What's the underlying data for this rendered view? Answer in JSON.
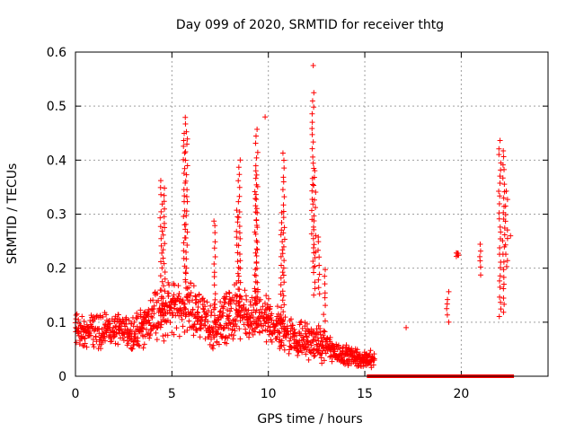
{
  "chart_data": {
    "type": "scatter",
    "title": "Day 099 of 2020, SRMTID for receiver thtg",
    "xlabel": "GPS time / hours",
    "ylabel": "SRMTID / TECUs",
    "xlim": [
      0,
      24.5
    ],
    "ylim": [
      0,
      0.6
    ],
    "xticks": [
      "0",
      "5",
      "10",
      "15",
      "20"
    ],
    "xtick_values": [
      0,
      5,
      10,
      15,
      20
    ],
    "yticks": [
      "0",
      "0.1",
      "0.2",
      "0.3",
      "0.4",
      "0.5",
      "0.6"
    ],
    "ytick_values": [
      0,
      0.1,
      0.2,
      0.3,
      0.4,
      0.5,
      0.6
    ],
    "grid": true,
    "marker": "+",
    "color": "#ff0000",
    "zero_marker": "square",
    "zero_gap_range": [
      15.2,
      22.7
    ],
    "envelope": {
      "x": [
        0,
        0.5,
        1,
        1.5,
        2,
        2.5,
        3,
        3.5,
        4,
        4.5,
        5,
        5.5,
        6,
        6.5,
        7,
        7.5,
        8,
        8.5,
        9,
        9.5,
        10,
        10.5,
        11,
        11.5,
        12,
        12.5,
        13,
        13.5,
        14,
        14.5,
        15,
        15.5
      ],
      "center": [
        0.085,
        0.08,
        0.085,
        0.09,
        0.085,
        0.08,
        0.085,
        0.09,
        0.11,
        0.12,
        0.13,
        0.12,
        0.13,
        0.11,
        0.09,
        0.1,
        0.11,
        0.12,
        0.1,
        0.11,
        0.1,
        0.09,
        0.08,
        0.07,
        0.065,
        0.06,
        0.055,
        0.045,
        0.04,
        0.035,
        0.03,
        0.035
      ],
      "spread": [
        0.04,
        0.035,
        0.04,
        0.04,
        0.035,
        0.035,
        0.04,
        0.045,
        0.05,
        0.06,
        0.06,
        0.06,
        0.06,
        0.05,
        0.05,
        0.05,
        0.06,
        0.06,
        0.05,
        0.06,
        0.05,
        0.05,
        0.04,
        0.04,
        0.04,
        0.04,
        0.035,
        0.025,
        0.02,
        0.02,
        0.015,
        0.02
      ]
    },
    "spikes": [
      {
        "x": 4.45,
        "low": 0.12,
        "high": 0.36
      },
      {
        "x": 4.6,
        "low": 0.13,
        "high": 0.35
      },
      {
        "x": 5.75,
        "low": 0.15,
        "high": 0.48
      },
      {
        "x": 5.65,
        "low": 0.18,
        "high": 0.45
      },
      {
        "x": 7.2,
        "low": 0.1,
        "high": 0.29
      },
      {
        "x": 8.5,
        "low": 0.12,
        "high": 0.4
      },
      {
        "x": 8.4,
        "low": 0.12,
        "high": 0.31
      },
      {
        "x": 9.4,
        "low": 0.12,
        "high": 0.455
      },
      {
        "x": 9.35,
        "low": 0.12,
        "high": 0.37
      },
      {
        "x": 9.85,
        "low": 0.48,
        "high": 0.48
      },
      {
        "x": 10.8,
        "low": 0.12,
        "high": 0.41
      },
      {
        "x": 10.7,
        "low": 0.1,
        "high": 0.3
      },
      {
        "x": 12.3,
        "low": 0.2,
        "high": 0.525
      },
      {
        "x": 12.3,
        "low": 0.575,
        "high": 0.575
      },
      {
        "x": 12.4,
        "low": 0.15,
        "high": 0.38
      },
      {
        "x": 12.6,
        "low": 0.15,
        "high": 0.26
      },
      {
        "x": 12.9,
        "low": 0.1,
        "high": 0.2
      },
      {
        "x": 17.2,
        "low": 0.09,
        "high": 0.09
      },
      {
        "x": 19.3,
        "low": 0.1,
        "high": 0.155
      },
      {
        "x": 19.8,
        "low": 0.22,
        "high": 0.23
      },
      {
        "x": 21.0,
        "low": 0.19,
        "high": 0.245
      },
      {
        "x": 22.0,
        "low": 0.11,
        "high": 0.435
      },
      {
        "x": 22.2,
        "low": 0.12,
        "high": 0.42
      },
      {
        "x": 22.35,
        "low": 0.2,
        "high": 0.34
      },
      {
        "x": 22.6,
        "low": 0.26,
        "high": 0.26
      }
    ]
  }
}
